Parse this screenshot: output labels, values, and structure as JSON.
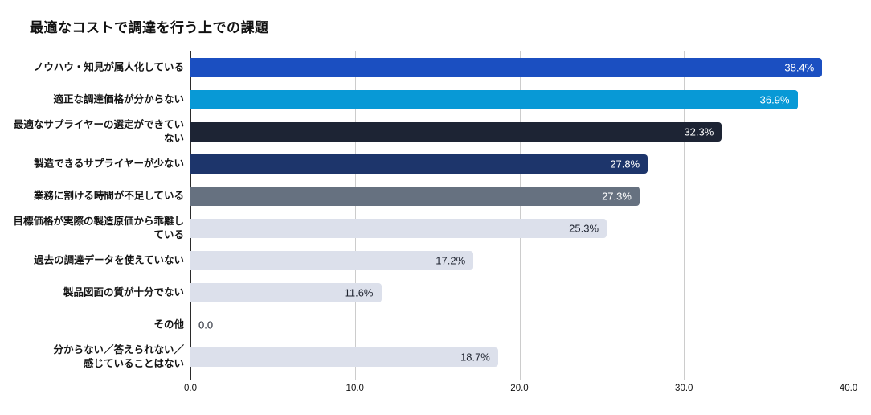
{
  "title": "最適なコストで調達を行う上での課題",
  "chart_data": {
    "type": "bar",
    "orientation": "horizontal",
    "title": "最適なコストで調達を行う上での課題",
    "xlabel": "",
    "ylabel": "",
    "xlim": [
      0,
      40
    ],
    "grid": true,
    "tick_values": [
      0,
      10,
      20,
      30,
      40
    ],
    "tick_labels": [
      "0.0",
      "10.0",
      "20.0",
      "30.0",
      "40.0"
    ],
    "categories": [
      "ノウハウ・知見が属人化している",
      "適正な調達価格が分からない",
      "最適なサプライヤーの選定ができていない",
      "製造できるサプライヤーが少ない",
      "業務に割ける時間が不足している",
      "目標価格が実際の製造原価から乖離している",
      "過去の調達データを使えていない",
      "製品図面の質が十分でない",
      "その他",
      "分からない／答えられない／感じていることはない"
    ],
    "values": [
      38.4,
      36.9,
      32.3,
      27.8,
      27.3,
      25.3,
      17.2,
      11.6,
      0.0,
      18.7
    ],
    "bars": [
      {
        "label_lines": [
          "ノウハウ・知見が属人化している"
        ],
        "value": 38.4,
        "value_label": "38.4%",
        "color": "#1b4fc1",
        "value_label_color": "#ffffff",
        "value_inside": true
      },
      {
        "label_lines": [
          "適正な調達価格が分からない"
        ],
        "value": 36.9,
        "value_label": "36.9%",
        "color": "#0899d6",
        "value_label_color": "#ffffff",
        "value_inside": true
      },
      {
        "label_lines": [
          "最適なサプライヤーの選定ができてい",
          "ない"
        ],
        "value": 32.3,
        "value_label": "32.3%",
        "color": "#1d2434",
        "value_label_color": "#ffffff",
        "value_inside": true
      },
      {
        "label_lines": [
          "製造できるサプライヤーが少ない"
        ],
        "value": 27.8,
        "value_label": "27.8%",
        "color": "#1d356b",
        "value_label_color": "#ffffff",
        "value_inside": true
      },
      {
        "label_lines": [
          "業務に割ける時間が不足している"
        ],
        "value": 27.3,
        "value_label": "27.3%",
        "color": "#667180",
        "value_label_color": "#ffffff",
        "value_inside": true
      },
      {
        "label_lines": [
          "目標価格が実際の製造原価から乖離し",
          "ている"
        ],
        "value": 25.3,
        "value_label": "25.3%",
        "color": "#dce0eb",
        "value_label_color": "#1f2430",
        "value_inside": true
      },
      {
        "label_lines": [
          "過去の調達データを使えていない"
        ],
        "value": 17.2,
        "value_label": "17.2%",
        "color": "#dce0eb",
        "value_label_color": "#1f2430",
        "value_inside": true
      },
      {
        "label_lines": [
          "製品図面の質が十分でない"
        ],
        "value": 11.6,
        "value_label": "11.6%",
        "color": "#dce0eb",
        "value_label_color": "#1f2430",
        "value_inside": true
      },
      {
        "label_lines": [
          "その他"
        ],
        "value": 0.0,
        "value_label": "0.0",
        "color": "#dce0eb",
        "value_label_color": "#1f2430",
        "value_inside": false
      },
      {
        "label_lines": [
          "分からない／答えられない／",
          "感じていることはない"
        ],
        "value": 18.7,
        "value_label": "18.7%",
        "color": "#dce0eb",
        "value_label_color": "#1f2430",
        "value_inside": true
      }
    ],
    "colors": {
      "gridline": "#cccccc",
      "zero_axis": "#2b2b2b",
      "category_label": "#141414",
      "tick_label": "#111111",
      "background": "#ffffff"
    }
  }
}
